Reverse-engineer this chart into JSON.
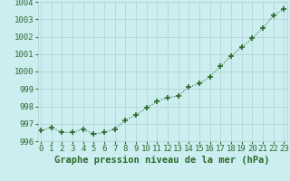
{
  "x": [
    0,
    1,
    2,
    3,
    4,
    5,
    6,
    7,
    8,
    9,
    10,
    11,
    12,
    13,
    14,
    15,
    16,
    17,
    18,
    19,
    20,
    21,
    22,
    23
  ],
  "y": [
    996.6,
    996.8,
    996.5,
    996.5,
    996.7,
    996.4,
    996.5,
    996.7,
    997.2,
    997.5,
    997.9,
    998.3,
    998.5,
    998.6,
    999.1,
    999.3,
    999.7,
    1000.3,
    1000.9,
    1001.4,
    1001.9,
    1002.5,
    1003.2,
    1003.6
  ],
  "line_color": "#2d6a2d",
  "marker_color": "#2d6a2d",
  "bg_color": "#cceef0",
  "grid_color": "#b0d0d0",
  "text_color": "#2d6a2d",
  "xlabel": "Graphe pression niveau de la mer (hPa)",
  "ylim": [
    996,
    1004
  ],
  "yticks": [
    996,
    997,
    998,
    999,
    1000,
    1001,
    1002,
    1003,
    1004
  ],
  "xticks": [
    0,
    1,
    2,
    3,
    4,
    5,
    6,
    7,
    8,
    9,
    10,
    11,
    12,
    13,
    14,
    15,
    16,
    17,
    18,
    19,
    20,
    21,
    22,
    23
  ],
  "xlabel_fontsize": 7.5,
  "tick_fontsize": 6.5
}
